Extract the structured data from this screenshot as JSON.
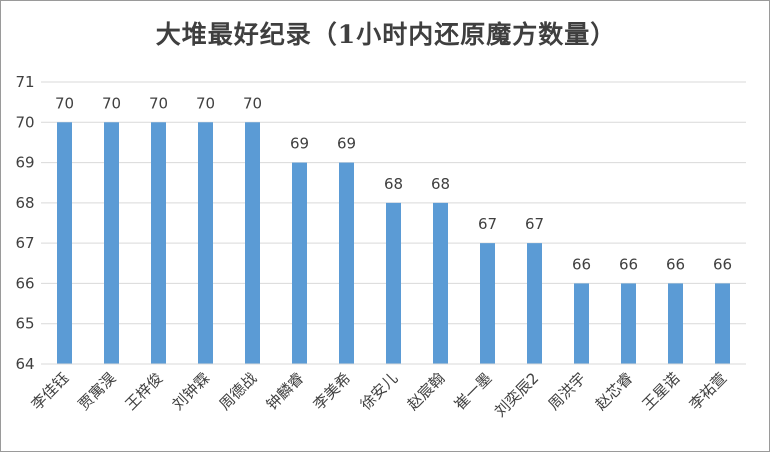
{
  "chart_data": {
    "type": "bar",
    "title": "大堆最好纪录（1小时内还原魔方数量）",
    "xlabel": "",
    "ylabel": "",
    "ylim": [
      64,
      71
    ],
    "yticks": [
      64,
      65,
      66,
      67,
      68,
      69,
      70,
      71
    ],
    "grid": true,
    "legend": "none",
    "bar_color": "#5b9bd5",
    "categories": [
      "李佳钰",
      "贾寓淏",
      "王梓俊",
      "刘钟霖",
      "周德战",
      "钟麟睿",
      "李美希",
      "徐安儿",
      "赵宸翰",
      "崔一墨",
      "刘奕辰2",
      "周洪宇",
      "赵芯睿",
      "王星诺",
      "李祐萱"
    ],
    "values": [
      70,
      70,
      70,
      70,
      70,
      69,
      69,
      68,
      68,
      67,
      67,
      66,
      66,
      66,
      66
    ]
  }
}
